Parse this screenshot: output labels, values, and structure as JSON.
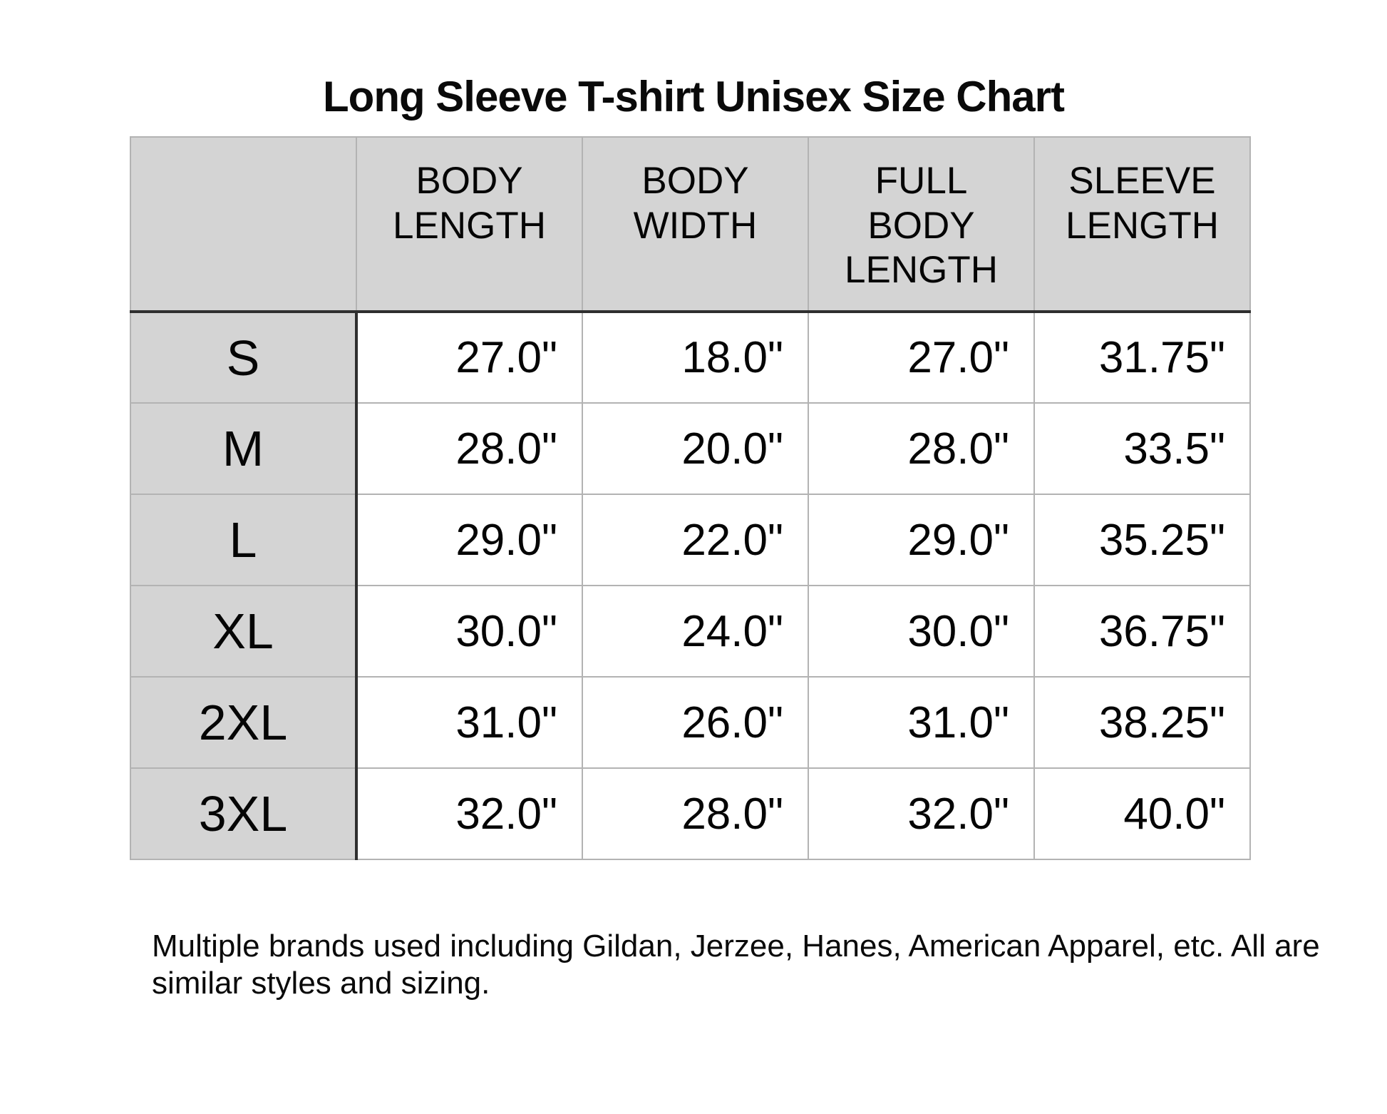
{
  "title": "Long Sleeve T-shirt Unisex Size Chart",
  "table": {
    "corner_label": "",
    "columns": [
      "BODY\nLENGTH",
      "BODY\nWIDTH",
      "FULL\nBODY\nLENGTH",
      "SLEEVE\nLENGTH"
    ],
    "rows": [
      {
        "size": "S",
        "values": [
          "27.0\"",
          "18.0\"",
          "27.0\"",
          "31.75\""
        ]
      },
      {
        "size": "M",
        "values": [
          "28.0\"",
          "20.0\"",
          "28.0\"",
          "33.5\""
        ]
      },
      {
        "size": "L",
        "values": [
          "29.0\"",
          "22.0\"",
          "29.0\"",
          "35.25\""
        ]
      },
      {
        "size": "XL",
        "values": [
          "30.0\"",
          "24.0\"",
          "30.0\"",
          "36.75\""
        ]
      },
      {
        "size": "2XL",
        "values": [
          "31.0\"",
          "26.0\"",
          "31.0\"",
          "38.25\""
        ]
      },
      {
        "size": "3XL",
        "values": [
          "32.0\"",
          "28.0\"",
          "32.0\"",
          "40.0\""
        ]
      }
    ]
  },
  "footnote": {
    "text": "Multiple brands used including Gildan, Jerzee, Hanes, American Apparel, etc. All are\nsimilar styles and sizing."
  },
  "colors": {
    "page_bg": "#ffffff",
    "header_bg": "#d4d4d4",
    "grid_line": "#b3b3b3",
    "heavy_line": "#2f2f2f",
    "text": "#000000"
  },
  "chart_data": {
    "type": "table",
    "title": "Long Sleeve T-shirt Unisex Size Chart",
    "columns": [
      "BODY LENGTH",
      "BODY WIDTH",
      "FULL BODY LENGTH",
      "SLEEVE LENGTH"
    ],
    "row_labels": [
      "S",
      "M",
      "L",
      "XL",
      "2XL",
      "3XL"
    ],
    "units": "inches",
    "values": [
      [
        27.0,
        18.0,
        27.0,
        31.75
      ],
      [
        28.0,
        20.0,
        28.0,
        33.5
      ],
      [
        29.0,
        22.0,
        29.0,
        35.25
      ],
      [
        30.0,
        24.0,
        30.0,
        36.75
      ],
      [
        31.0,
        26.0,
        31.0,
        38.25
      ],
      [
        32.0,
        28.0,
        32.0,
        40.0
      ]
    ],
    "note": "Multiple brands used including Gildan, Jerzee, Hanes, American Apparel, etc. All are similar styles and sizing.",
    "layout": {
      "header_fill": "#d4d4d4",
      "row_label_fill": "#d4d4d4",
      "grid": true
    }
  }
}
